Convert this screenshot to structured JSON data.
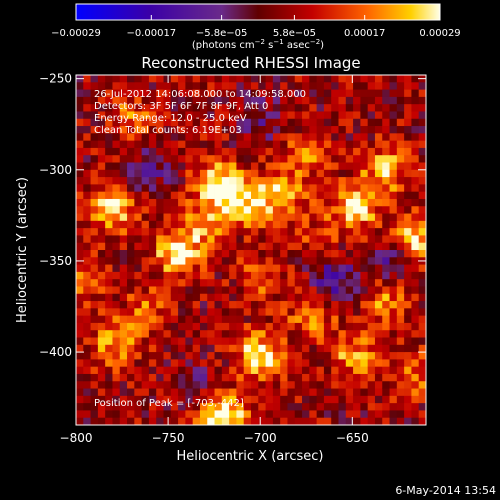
{
  "chart_data": {
    "type": "heatmap",
    "title": "Reconstructed RHESSI Image",
    "xlabel": "Heliocentric X (arcsec)",
    "ylabel": "Heliocentric Y (arcsec)",
    "xlim": [
      -800,
      -610
    ],
    "ylim": [
      -440,
      -248
    ],
    "x_ticks": [
      -800,
      -750,
      -700,
      -650
    ],
    "x_tick_labels": [
      "−800",
      "−750",
      "−700",
      "−650"
    ],
    "y_ticks": [
      -250,
      -300,
      -350,
      -400
    ],
    "y_tick_labels": [
      "−250",
      "−300",
      "−350",
      "−400"
    ],
    "colorbar": {
      "ticks": [
        -0.00029,
        -0.00017,
        -5.8e-05,
        5.8e-05,
        0.00017,
        0.00029
      ],
      "tick_labels": [
        "−0.00029",
        "−0.00017",
        "−5.8e−05",
        "5.8e−05",
        "0.00017",
        "0.00029"
      ],
      "units_main": "(photons cm",
      "units_exp1": "−2",
      "units_mid": " s",
      "units_exp2": "−1",
      "units_tail": " asec",
      "units_exp3": "−2",
      "units_close": ")",
      "range": [
        -0.00029,
        0.00029
      ]
    },
    "grid": false,
    "sources": [
      {
        "x": -780,
        "y": -322,
        "amp": 0.00022
      },
      {
        "x": -722,
        "y": -308,
        "amp": 0.00028
      },
      {
        "x": -703,
        "y": -318,
        "amp": 0.0002
      },
      {
        "x": -745,
        "y": -345,
        "amp": 0.00024
      },
      {
        "x": -728,
        "y": -330,
        "amp": 0.00016
      },
      {
        "x": -648,
        "y": -320,
        "amp": 0.00024
      },
      {
        "x": -632,
        "y": -300,
        "amp": 0.00018
      },
      {
        "x": -615,
        "y": -338,
        "amp": 0.00022
      },
      {
        "x": -686,
        "y": -312,
        "amp": 0.00015
      },
      {
        "x": -676,
        "y": -292,
        "amp": 0.00012
      },
      {
        "x": -770,
        "y": -272,
        "amp": 0.00012
      },
      {
        "x": -700,
        "y": -402,
        "amp": 0.00024
      },
      {
        "x": -672,
        "y": -380,
        "amp": 0.00014
      },
      {
        "x": -720,
        "y": -436,
        "amp": 0.00029
      },
      {
        "x": -780,
        "y": -395,
        "amp": 0.00016
      },
      {
        "x": -762,
        "y": -378,
        "amp": 0.00012
      },
      {
        "x": -632,
        "y": -372,
        "amp": 0.00015
      },
      {
        "x": -650,
        "y": -402,
        "amp": 0.00016
      },
      {
        "x": -618,
        "y": -412,
        "amp": 0.00014
      },
      {
        "x": -700,
        "y": -360,
        "amp": 0.0001
      },
      {
        "x": -668,
        "y": -338,
        "amp": 9e-05
      },
      {
        "x": -795,
        "y": -360,
        "amp": 0.0001
      }
    ],
    "negative_regions": [
      {
        "x": -660,
        "y": -360,
        "amp": -0.00016
      },
      {
        "x": -630,
        "y": -352,
        "amp": -0.00012
      },
      {
        "x": -760,
        "y": -300,
        "amp": -0.0001
      },
      {
        "x": -700,
        "y": -272,
        "amp": -9e-05
      },
      {
        "x": -735,
        "y": -420,
        "amp": -8e-05
      }
    ]
  },
  "annotations": {
    "line1": "26-Jul-2012 14:06:08.000 to 14:09:58.000",
    "line2": "Detectors: 3F 5F 6F 7F 8F 9F, Att 0",
    "line3": "Energy Range: 12.0 - 25.0 keV",
    "line4": "Clean     Total counts: 6.19E+03",
    "peak": "Position of Peak = [-703,-442]"
  },
  "footer": {
    "date": "6-May-2014 13:54"
  }
}
